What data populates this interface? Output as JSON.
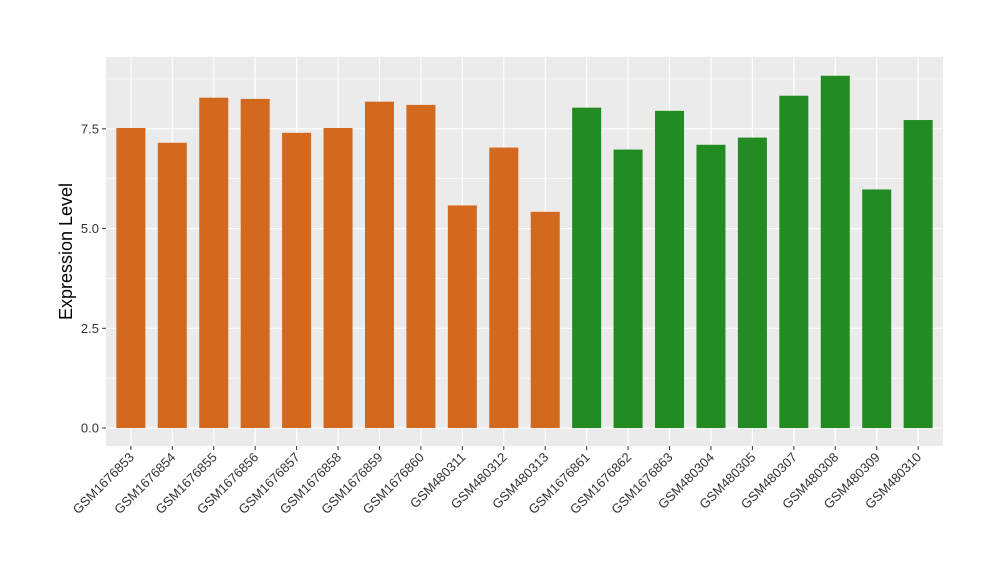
{
  "chart_data": {
    "type": "bar",
    "title": "",
    "xlabel": "",
    "ylabel": "Expression Level",
    "ylim": [
      -0.45,
      9.3
    ],
    "yticks": [
      0.0,
      2.5,
      5.0,
      7.5
    ],
    "ytick_labels": [
      "0.0",
      "2.5",
      "5.0",
      "7.5"
    ],
    "grid": true,
    "categories": [
      "GSM1676853",
      "GSM1676854",
      "GSM1676855",
      "GSM1676856",
      "GSM1676857",
      "GSM1676858",
      "GSM1676859",
      "GSM1676860",
      "GSM480311",
      "GSM480312",
      "GSM480313",
      "GSM1676861",
      "GSM1676862",
      "GSM1676863",
      "GSM480304",
      "GSM480305",
      "GSM480307",
      "GSM480308",
      "GSM480309",
      "GSM480310"
    ],
    "values": [
      7.52,
      7.15,
      8.28,
      8.25,
      7.4,
      7.52,
      8.18,
      8.1,
      5.58,
      7.03,
      5.42,
      8.03,
      6.98,
      7.95,
      7.1,
      7.28,
      8.33,
      8.83,
      5.98,
      7.72
    ],
    "bar_colors": [
      "#D2691E",
      "#D2691E",
      "#D2691E",
      "#D2691E",
      "#D2691E",
      "#D2691E",
      "#D2691E",
      "#D2691E",
      "#D2691E",
      "#D2691E",
      "#D2691E",
      "#228B22",
      "#228B22",
      "#228B22",
      "#228B22",
      "#228B22",
      "#228B22",
      "#228B22",
      "#228B22",
      "#228B22"
    ],
    "panel_background": "#EBEBEB",
    "grid_color": "#FFFFFF"
  }
}
